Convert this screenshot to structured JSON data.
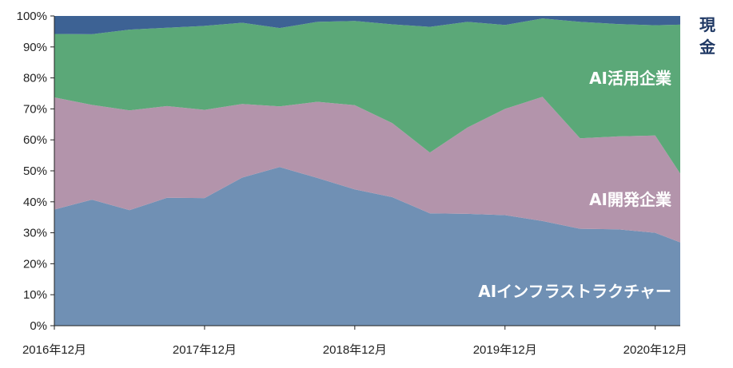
{
  "chart_data": {
    "type": "area",
    "stacked": true,
    "percent": true,
    "x": [
      "2016-12",
      "2017-03",
      "2017-06",
      "2017-09",
      "2017-12",
      "2018-03",
      "2018-06",
      "2018-09",
      "2018-12",
      "2019-03",
      "2019-06",
      "2019-09",
      "2019-12",
      "2020-03",
      "2020-06",
      "2020-09",
      "2020-12",
      "2021-02"
    ],
    "series": [
      {
        "name": "AIインフラストラクチャー",
        "color": "#7090b4",
        "values": [
          37.5,
          40.7,
          37.3,
          41.3,
          41.2,
          47.8,
          51.2,
          47.7,
          44.0,
          41.5,
          36.3,
          36.1,
          35.7,
          33.8,
          31.3,
          31.1,
          30.0,
          26.9
        ]
      },
      {
        "name": "AI開発企業",
        "color": "#b394ab",
        "values": [
          36.2,
          30.6,
          32.2,
          29.6,
          28.5,
          23.8,
          19.6,
          24.6,
          27.2,
          23.9,
          19.6,
          27.9,
          34.3,
          40.1,
          29.2,
          30.0,
          31.4,
          22.2
        ]
      },
      {
        "name": "AI活用企業",
        "color": "#5ba878",
        "values": [
          20.5,
          22.8,
          26.1,
          25.3,
          27.1,
          26.2,
          25.3,
          25.8,
          27.2,
          31.9,
          40.6,
          34.1,
          27.1,
          25.3,
          37.6,
          36.3,
          35.6,
          48.1
        ]
      },
      {
        "name": "現金",
        "color": "#3d6294",
        "values": [
          5.8,
          5.9,
          4.4,
          3.8,
          3.2,
          2.2,
          3.9,
          1.9,
          1.6,
          2.7,
          3.5,
          1.9,
          2.9,
          0.8,
          1.9,
          2.6,
          3.0,
          2.8
        ]
      }
    ],
    "ylim": [
      0,
      100
    ],
    "yticks": [
      "0%",
      "10%",
      "20%",
      "30%",
      "40%",
      "50%",
      "60%",
      "70%",
      "80%",
      "90%",
      "100%"
    ],
    "xtick_labels": [
      "2016年12月",
      "2017年12月",
      "2018年12月",
      "2019年12月",
      "2020年12月"
    ],
    "xtick_positions": [
      "2016-12",
      "2017-12",
      "2018-12",
      "2019-12",
      "2020-12"
    ],
    "grid": false,
    "legend": "inline labels"
  }
}
